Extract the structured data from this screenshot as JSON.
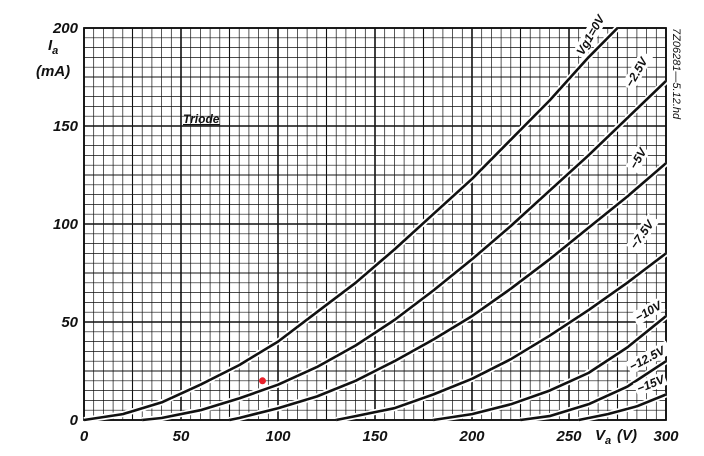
{
  "chart_data": {
    "type": "line",
    "ylabel_symbol": "I",
    "ylabel_subscript": "a",
    "ylabel_unit": "(mA)",
    "xlabel_symbol": "V",
    "xlabel_subscript": "a",
    "xlabel_unit": "(V)",
    "annotation": "Triode",
    "side_note": "7Z06281—5.12.hd",
    "xlim": [
      0,
      300
    ],
    "ylim": [
      0,
      200
    ],
    "x_ticks": [
      "0",
      "50",
      "100",
      "150",
      "200",
      "250",
      "",
      "300"
    ],
    "y_ticks": [
      "0",
      "50",
      "100",
      "150",
      "200"
    ],
    "grid": true,
    "marker": {
      "x": 92,
      "y": 20,
      "color": "#e8202a"
    },
    "series": [
      {
        "name": "Vg1=0V",
        "x": [
          0,
          20,
          40,
          60,
          80,
          100,
          120,
          140,
          160,
          180,
          200,
          220,
          240,
          260,
          275
        ],
        "y": [
          0,
          3,
          9,
          18,
          28,
          40,
          55,
          70,
          87,
          105,
          123,
          143,
          163,
          185,
          200
        ]
      },
      {
        "name": "−2.5V",
        "x": [
          30,
          40,
          60,
          80,
          100,
          120,
          140,
          160,
          180,
          200,
          220,
          240,
          260,
          280,
          300
        ],
        "y": [
          0,
          1,
          5,
          11,
          18,
          27,
          38,
          51,
          66,
          82,
          99,
          117,
          135,
          154,
          173
        ]
      },
      {
        "name": "−5V",
        "x": [
          75,
          80,
          100,
          120,
          140,
          160,
          180,
          200,
          220,
          240,
          260,
          280,
          300
        ],
        "y": [
          0,
          1,
          6,
          12,
          20,
          30,
          41,
          53,
          67,
          82,
          98,
          114,
          131
        ]
      },
      {
        "name": "−7.5V",
        "x": [
          130,
          140,
          160,
          180,
          200,
          220,
          240,
          260,
          280,
          300
        ],
        "y": [
          0,
          2,
          6,
          13,
          21,
          31,
          43,
          56,
          70,
          85
        ]
      },
      {
        "name": "−10V",
        "x": [
          180,
          200,
          220,
          240,
          260,
          280,
          300
        ],
        "y": [
          0,
          3,
          8,
          15,
          24,
          37,
          53
        ]
      },
      {
        "name": "−12.5V",
        "x": [
          225,
          240,
          260,
          280,
          300
        ],
        "y": [
          0,
          2,
          8,
          17,
          30
        ]
      },
      {
        "name": "−15V",
        "x": [
          255,
          270,
          285,
          300
        ],
        "y": [
          0,
          3,
          7,
          13
        ]
      }
    ]
  }
}
